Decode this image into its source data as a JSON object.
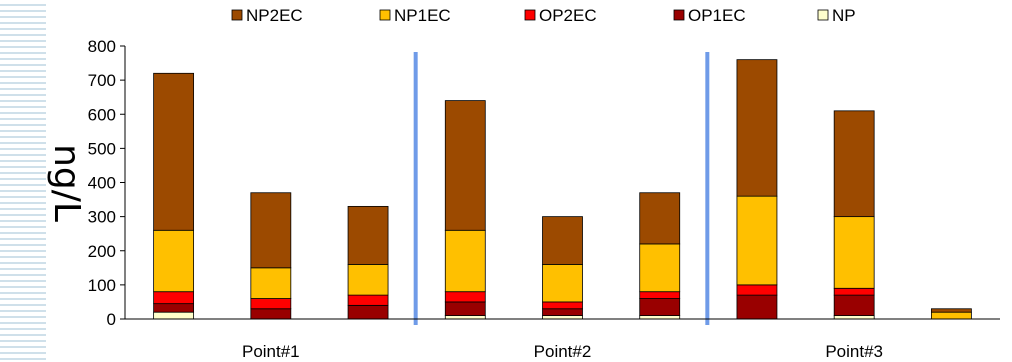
{
  "chart_data": {
    "type": "bar",
    "stacked": true,
    "ylabel": "ng/L",
    "ylim": [
      0,
      800
    ],
    "yticks": [
      0,
      100,
      200,
      300,
      400,
      500,
      600,
      700,
      800
    ],
    "groups": [
      "Point#1",
      "Point#2",
      "Point#3"
    ],
    "bars_per_group": 3,
    "legend_position": "top",
    "grid": false,
    "series": [
      {
        "name": "NP",
        "color": "#ffffcc",
        "values": [
          20,
          0,
          0,
          10,
          10,
          10,
          0,
          10,
          0
        ]
      },
      {
        "name": "OP1EC",
        "color": "#990000",
        "values": [
          25,
          30,
          40,
          40,
          20,
          50,
          70,
          60,
          0
        ]
      },
      {
        "name": "OP2EC",
        "color": "#ff0000",
        "values": [
          35,
          30,
          30,
          30,
          20,
          20,
          30,
          20,
          0
        ]
      },
      {
        "name": "NP1EC",
        "color": "#ffc000",
        "values": [
          180,
          90,
          90,
          180,
          110,
          140,
          260,
          210,
          20
        ]
      },
      {
        "name": "NP2EC",
        "color": "#9c4a00",
        "values": [
          460,
          220,
          170,
          380,
          140,
          150,
          400,
          310,
          10
        ]
      }
    ],
    "legend_order": [
      "NP2EC",
      "NP1EC",
      "OP2EC",
      "OP1EC",
      "NP"
    ],
    "separator_color": "#6f9be8"
  }
}
